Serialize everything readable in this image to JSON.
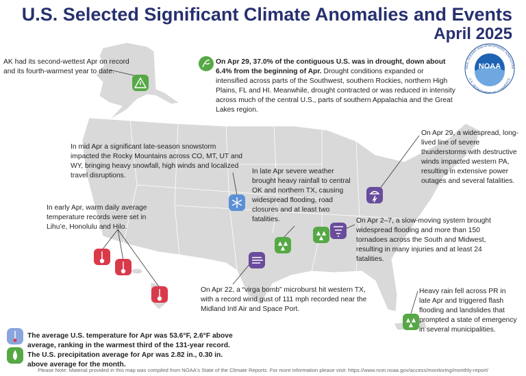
{
  "header": {
    "title": "U.S. Selected Significant Climate Anomalies and Events",
    "subtitle": "April 2025"
  },
  "logo": {
    "name": "NOAA",
    "agency": "NATIONAL OCEANIC AND ATMOSPHERIC ADMINISTRATION",
    "department": "U.S. DEPARTMENT OF COMMERCE"
  },
  "drought": {
    "bold": "On Apr 29, 37.0% of the contiguous U.S. was in drought, down about 6.4% from the beginning of Apr.",
    "text": "Drought conditions expanded or intensified across parts of the Southwest, southern Rockies, northern High Plains, FL and HI. Meanwhile, drought contracted or was reduced in intensity across much of the central U.S., parts of southern Appalachia and the Great Lakes region."
  },
  "annotations": {
    "alaska": "AK had its second-wettest Apr on record and its fourth-warmest year to date.",
    "snowstorm": "In mid Apr a significant late-season snowstorm impacted the Rocky Mountains across CO, MT, UT and WY, bringing heavy snowfall, high winds and localized travel disruptions.",
    "oklahoma": "In late Apr severe weather brought heavy rainfall to central OK and northern TX, causing widespread flooding, road closures and at least two fatalities.",
    "pennsylvania": "On Apr 29, a widespread, long-lived line of severe thunderstorms with destructive winds impacted western PA, resulting in extensive power outages and several fatalities.",
    "hawaii": "In early Apr, warm daily average temperature records were set in Lihu’e, Honolulu and Hilo.",
    "tornadoes": "On Apr 2–7, a slow-moving system brought widespread flooding and more than 150 tornadoes across the South and Midwest, resulting in many injuries and at least 24 fatalities.",
    "virga": "On Apr 22, a “virga bomb” microburst hit western TX, with a record wind gust of 111 mph recorded near the Midland Intl Air and Space Port.",
    "puerto_rico": "Heavy rain fell across PR in late Apr and triggered flash flooding and landslides that prompted a state of emergency in several municipalities."
  },
  "summary": {
    "text": "The average U.S. temperature for Apr was 53.6°F, 2.6°F above average, ranking in the warmest third of the 131-year record. The U.S. precipitation average for Apr was 2.82 in., 0.30 in. above average for the month."
  },
  "footer": {
    "note": "Please Note: Material provided in this map was compiled from NOAA's State of the Climate Reports. For more information please visit: https://www.ncei.noaa.gov/access/monitoring/monthly-report/"
  }
}
